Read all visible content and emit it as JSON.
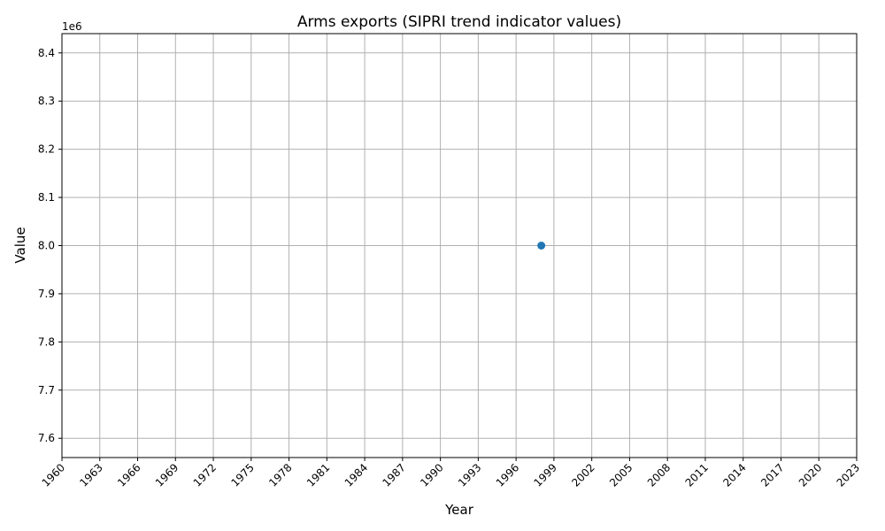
{
  "chart_data": {
    "type": "scatter",
    "title": "Arms exports (SIPRI trend indicator values)",
    "xlabel": "Year",
    "ylabel": "Value",
    "y_offset_label": "1e6",
    "xlim": [
      1960,
      2023
    ],
    "ylim": [
      7560000,
      8440000
    ],
    "x_ticks": [
      1960,
      1963,
      1966,
      1969,
      1972,
      1975,
      1978,
      1981,
      1984,
      1987,
      1990,
      1993,
      1996,
      1999,
      2002,
      2005,
      2008,
      2011,
      2014,
      2017,
      2020,
      2023
    ],
    "y_ticks": [
      7600000,
      7700000,
      7800000,
      7900000,
      8000000,
      8100000,
      8200000,
      8300000,
      8400000
    ],
    "y_tick_labels": [
      "7.6",
      "7.7",
      "7.8",
      "7.9",
      "8.0",
      "8.1",
      "8.2",
      "8.3",
      "8.4"
    ],
    "grid": true,
    "series": [
      {
        "color": "#1f77b4",
        "points": [
          {
            "x": 1998,
            "y": 8000000
          }
        ]
      }
    ]
  }
}
